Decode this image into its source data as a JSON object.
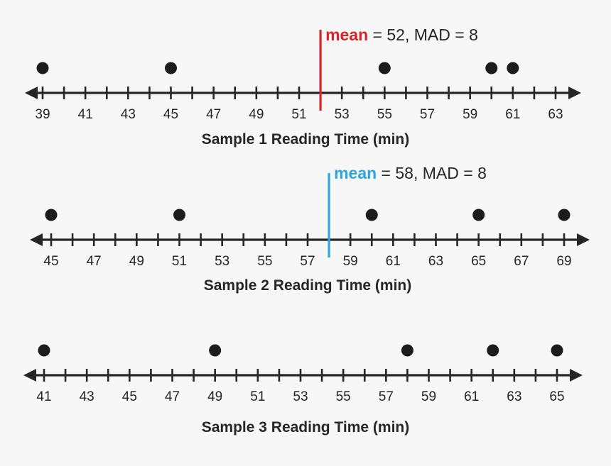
{
  "colors": {
    "axis": "#262626",
    "dot": "#1c1c1c",
    "background": "#f7f7f7"
  },
  "chart_data": [
    {
      "type": "scatter",
      "subtype": "dot-plot",
      "xlabel": "Sample 1 Reading Time (min)",
      "xlim": [
        39,
        64
      ],
      "tick_labels": [
        "39",
        "41",
        "43",
        "45",
        "47",
        "49",
        "51",
        "53",
        "55",
        "57",
        "59",
        "61",
        "63"
      ],
      "values": [
        39,
        45,
        55,
        60,
        61
      ],
      "annotation": {
        "keyword": "mean",
        "text": " = 52, MAD = 8",
        "value": 52,
        "color": "#d9222a"
      }
    },
    {
      "type": "scatter",
      "subtype": "dot-plot",
      "xlabel": "Sample 2 Reading Time (min)",
      "xlim": [
        45,
        70
      ],
      "tick_labels": [
        "45",
        "47",
        "49",
        "51",
        "53",
        "55",
        "57",
        "59",
        "61",
        "63",
        "65",
        "67",
        "69"
      ],
      "values": [
        45,
        51,
        60,
        65,
        69
      ],
      "annotation": {
        "keyword": "mean",
        "text": " = 58, MAD = 8",
        "value": 58,
        "color": "#2ea6dc"
      }
    },
    {
      "type": "scatter",
      "subtype": "dot-plot",
      "xlabel": "Sample 3 Reading Time (min)",
      "xlim": [
        41,
        66
      ],
      "tick_labels": [
        "41",
        "43",
        "45",
        "47",
        "49",
        "51",
        "53",
        "55",
        "57",
        "59",
        "61",
        "63",
        "65"
      ],
      "values": [
        41,
        49,
        58,
        62,
        65
      ]
    }
  ]
}
